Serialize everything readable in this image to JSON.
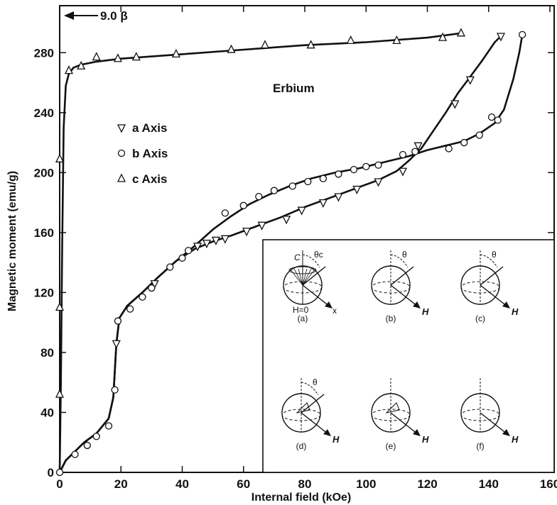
{
  "chart_data": {
    "type": "scatter",
    "title": "Erbium",
    "xlabel": "Internal field (kOe)",
    "ylabel": "Magnetic moment (emu/g)",
    "xlim": [
      0,
      160
    ],
    "ylim": [
      0,
      300
    ],
    "xticks": [
      0,
      20,
      40,
      60,
      80,
      100,
      120,
      140,
      160
    ],
    "yticks": [
      0,
      40,
      80,
      120,
      160,
      200,
      240,
      280
    ],
    "grid": false,
    "legend_position": "left-center",
    "annotation": "9.0 β",
    "series": [
      {
        "name": "a Axis",
        "marker": "triangle-down",
        "x": [
          18.5,
          31,
          45,
          48,
          51,
          54,
          61,
          66,
          74,
          79,
          86,
          91,
          97,
          104,
          112,
          117,
          129,
          134,
          144
        ],
        "y": [
          86,
          126,
          151,
          153,
          155,
          156,
          161,
          165,
          169,
          175,
          180,
          184,
          189,
          194,
          201,
          218,
          246,
          262,
          291
        ],
        "curve_x": [
          0,
          2,
          5,
          8,
          12,
          16,
          17.5,
          18.5,
          19.5,
          22,
          27,
          32,
          38,
          44,
          50,
          56,
          64,
          72,
          80,
          88,
          96,
          104,
          110,
          114,
          118,
          122,
          126,
          130,
          134,
          138,
          142,
          144
        ],
        "curve_y": [
          0,
          8,
          14,
          20,
          26,
          36,
          50,
          86,
          103,
          111,
          120,
          130,
          141,
          149,
          154,
          158,
          164,
          170,
          177,
          183,
          189,
          195,
          201,
          208,
          216,
          228,
          240,
          253,
          264,
          275,
          287,
          291
        ]
      },
      {
        "name": "b Axis",
        "marker": "circle",
        "x": [
          0,
          5,
          9,
          12,
          16,
          18,
          19,
          23,
          27,
          30,
          36,
          40,
          42,
          54,
          60,
          65,
          70,
          76,
          81,
          86,
          91,
          96,
          100,
          104,
          112,
          116,
          127,
          132,
          137,
          141,
          143,
          151
        ],
        "y": [
          0,
          12,
          18,
          24,
          31,
          55,
          101,
          109,
          117,
          123,
          137,
          143,
          148,
          173,
          178,
          184,
          188,
          191,
          194,
          196,
          199,
          202,
          204,
          205,
          212,
          214,
          216,
          220,
          225,
          237,
          235,
          292
        ],
        "curve_x": [
          0,
          2,
          5,
          8,
          12,
          16,
          17.5,
          18.5,
          19.5,
          22,
          27,
          32,
          38,
          44,
          50,
          56,
          62,
          68,
          75,
          82,
          90,
          98,
          106,
          114,
          120,
          126,
          132,
          137,
          142,
          145,
          148,
          150,
          151
        ],
        "curve_y": [
          0,
          8,
          14,
          20,
          26,
          36,
          50,
          86,
          103,
          111,
          120,
          130,
          141,
          151,
          162,
          171,
          179,
          185,
          191,
          196,
          200,
          203,
          207,
          211,
          215,
          218,
          221,
          226,
          233,
          242,
          262,
          280,
          292
        ]
      },
      {
        "name": "c Axis",
        "marker": "triangle-up",
        "x": [
          0,
          0,
          0,
          3,
          7,
          12,
          19,
          25,
          38,
          56,
          67,
          82,
          95,
          110,
          125,
          131
        ],
        "y": [
          52,
          110,
          209,
          268,
          271,
          277,
          276,
          277,
          279,
          282,
          285,
          285,
          288,
          288,
          290,
          293
        ],
        "curve_x": [
          0,
          0.4,
          0.8,
          1.3,
          2,
          3,
          4.5,
          7,
          12,
          20,
          40,
          60,
          80,
          100,
          120,
          131
        ],
        "curve_y": [
          0,
          60,
          150,
          230,
          258,
          266,
          270,
          272,
          274,
          276,
          279,
          282,
          285,
          287,
          290,
          293
        ]
      }
    ]
  },
  "inset": {
    "panels": [
      {
        "caption": "(a)",
        "angle_label": "θc",
        "axis_label": "C",
        "field_label": "H=0",
        "x_label": "x"
      },
      {
        "caption": "(b)",
        "angle_label": "θ",
        "h_label": "H"
      },
      {
        "caption": "(c)",
        "angle_label": "θ",
        "h_label": "H"
      },
      {
        "caption": "(d)",
        "angle_label": "θ",
        "h_label": "H"
      },
      {
        "caption": "(e)",
        "h_label": "H"
      },
      {
        "caption": "(f)",
        "h_label": "H"
      }
    ]
  }
}
